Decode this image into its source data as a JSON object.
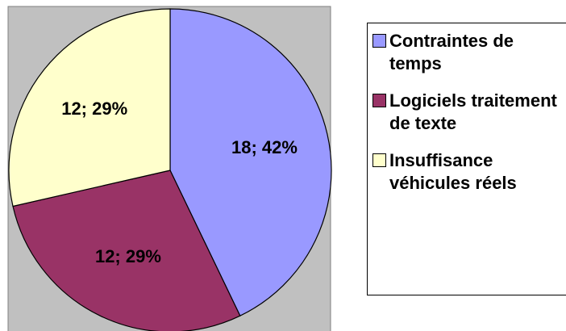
{
  "chart_data": {
    "type": "pie",
    "categories": [
      "Contraintes de temps",
      "Logiciels traitement de texte",
      "Insuffisance véhicules réels"
    ],
    "values": [
      18,
      12,
      12
    ],
    "value_labels": [
      "18; 42%",
      "12; 29%",
      "12; 29%"
    ],
    "colors": [
      "#9999ff",
      "#993366",
      "#ffffcc"
    ],
    "legend": "right"
  }
}
